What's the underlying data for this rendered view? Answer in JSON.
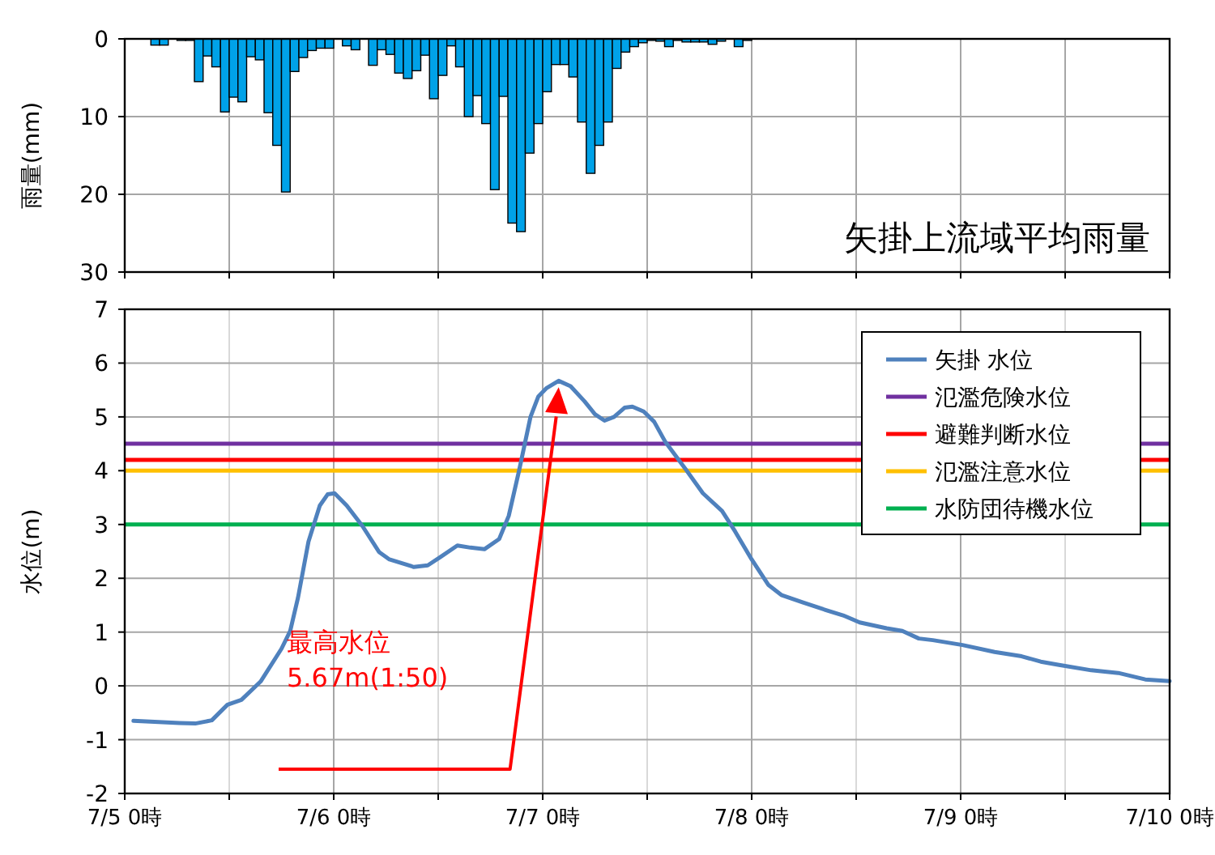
{
  "chart_data": [
    {
      "type": "bar",
      "title": "矢掛上流域平均雨量",
      "ylabel": "雨量(mm)",
      "xlim": [
        "--07-05T00:00",
        "--07-10T00:00"
      ],
      "xticks": [
        {
          "value": "--07-05T00:00",
          "label": null
        },
        {
          "value": "--07-05T12:00",
          "label": null
        },
        {
          "value": "--07-06T00:00",
          "label": null
        },
        {
          "value": "--07-06T12:00",
          "label": null
        },
        {
          "value": "--07-07T00:00",
          "label": null
        },
        {
          "value": "--07-07T12:00",
          "label": null
        },
        {
          "value": "--07-08T00:00",
          "label": null
        },
        {
          "value": "--07-08T12:00",
          "label": null
        },
        {
          "value": "--07-09T00:00",
          "label": null
        },
        {
          "value": "--07-09T12:00",
          "label": null
        },
        {
          "value": "--07-10T00:00",
          "label": null
        }
      ],
      "ylim": [
        30,
        0
      ],
      "yticks": [
        0,
        10,
        20,
        30
      ],
      "grid": true,
      "tick_labels": "y",
      "x": [
        "--07-05T03:30",
        "--07-05T04:30",
        "--07-05T05:30",
        "--07-05T06:30",
        "--07-05T07:30",
        "--07-05T08:30",
        "--07-05T09:30",
        "--07-05T10:30",
        "--07-05T11:30",
        "--07-05T12:30",
        "--07-05T13:30",
        "--07-05T14:30",
        "--07-05T15:30",
        "--07-05T16:30",
        "--07-05T17:30",
        "--07-05T18:30",
        "--07-05T19:30",
        "--07-05T20:30",
        "--07-05T21:30",
        "--07-05T22:30",
        "--07-05T23:30",
        "--07-06T00:30",
        "--07-06T01:30",
        "--07-06T02:30",
        "--07-06T03:30",
        "--07-06T04:30",
        "--07-06T05:30",
        "--07-06T06:30",
        "--07-06T07:30",
        "--07-06T08:30",
        "--07-06T09:30",
        "--07-06T10:30",
        "--07-06T11:30",
        "--07-06T12:30",
        "--07-06T13:30",
        "--07-06T14:30",
        "--07-06T15:30",
        "--07-06T16:30",
        "--07-06T17:30",
        "--07-06T18:30",
        "--07-06T19:30",
        "--07-06T20:30",
        "--07-06T21:30",
        "--07-06T22:30",
        "--07-06T23:30",
        "--07-07T00:30",
        "--07-07T01:30",
        "--07-07T02:30",
        "--07-07T03:30",
        "--07-07T04:30",
        "--07-07T05:30",
        "--07-07T06:30",
        "--07-07T07:30",
        "--07-07T08:30",
        "--07-07T09:30",
        "--07-07T10:30",
        "--07-07T11:30",
        "--07-07T12:30",
        "--07-07T13:30",
        "--07-07T14:30",
        "--07-07T15:30",
        "--07-07T16:30",
        "--07-07T17:30",
        "--07-07T18:30",
        "--07-07T19:30",
        "--07-07T20:30",
        "--07-07T21:30",
        "--07-07T22:30",
        "--07-07T23:30"
      ],
      "series": [
        {
          "color": "#00a2e8",
          "values": [
            0.8,
            0.8,
            0,
            0.2,
            0.2,
            5.5,
            2.2,
            3.6,
            9.4,
            7.5,
            8.1,
            2.3,
            2.7,
            9.5,
            13.7,
            19.7,
            4.2,
            2.4,
            1.5,
            1.2,
            1.2,
            0,
            0.9,
            1.4,
            0,
            3.4,
            1.4,
            2.0,
            4.4,
            5.1,
            4.1,
            2.1,
            7.7,
            4.7,
            0.9,
            3.6,
            10.0,
            7.3,
            10.9,
            19.4,
            7.4,
            23.7,
            24.8,
            14.7,
            10.9,
            6.8,
            3.3,
            3.3,
            4.9,
            10.7,
            17.3,
            13.7,
            10.7,
            3.8,
            1.7,
            1.0,
            0.5,
            0.2,
            0.3,
            1.0,
            0.2,
            0.4,
            0.4,
            0.4,
            0.7,
            0.3,
            0,
            1.0,
            0.2
          ]
        }
      ]
    },
    {
      "type": "line",
      "ylabel": "水位(m)",
      "xlim": [
        "--07-05T00:00",
        "--07-10T00:00"
      ],
      "xticks": [
        {
          "value": "--07-05T00:00",
          "label": "7/5 0時"
        },
        {
          "value": "--07-05T12:00",
          "label": null
        },
        {
          "value": "--07-06T00:00",
          "label": "7/6 0時"
        },
        {
          "value": "--07-06T12:00",
          "label": null
        },
        {
          "value": "--07-07T00:00",
          "label": "7/7 0時"
        },
        {
          "value": "--07-07T12:00",
          "label": null
        },
        {
          "value": "--07-08T00:00",
          "label": "7/8 0時"
        },
        {
          "value": "--07-08T12:00",
          "label": null
        },
        {
          "value": "--07-09T00:00",
          "label": "7/9 0時"
        },
        {
          "value": "--07-09T12:00",
          "label": null
        },
        {
          "value": "--07-10T00:00",
          "label": "7/10 0時"
        }
      ],
      "ylim": [
        -2,
        7
      ],
      "yticks": [
        -2,
        -1,
        0,
        1,
        2,
        3,
        4,
        5,
        6,
        7
      ],
      "grid": true,
      "legend": "top right",
      "series": [
        {
          "name": "矢掛 水位",
          "color": "#4f81bd",
          "x": [
            "--07-05T01:00",
            "--07-05T06:18",
            "--07-05T08:06",
            "--07-05T10:00",
            "--07-05T11:48",
            "--07-05T13:24",
            "--07-05T15:36",
            "--07-05T18:00",
            "--07-05T19:00",
            "--07-05T19:54",
            "--07-05T21:06",
            "--07-05T22:24",
            "--07-05T23:18",
            "--07-06T00:06",
            "--07-06T01:30",
            "--07-06T03:18",
            "--07-06T05:12",
            "--07-06T06:24",
            "--07-06T09:12",
            "--07-06T10:48",
            "--07-06T12:18",
            "--07-06T14:12",
            "--07-06T15:42",
            "--07-06T17:18",
            "--07-06T19:00",
            "--07-06T20:06",
            "--07-06T21:18",
            "--07-06T22:36",
            "--07-06T23:30",
            "--07-07T00:24",
            "--07-07T01:50",
            "--07-07T03:12",
            "--07-07T04:48",
            "--07-07T06:00",
            "--07-07T07:06",
            "--07-07T08:12",
            "--07-07T09:24",
            "--07-07T10:18",
            "--07-07T11:36",
            "--07-07T12:48",
            "--07-07T14:06",
            "--07-07T16:30",
            "--07-07T18:24",
            "--07-07T20:36",
            "--07-07T22:06",
            "--07-08T00:00",
            "--07-08T01:54",
            "--07-08T03:24",
            "--07-08T05:54",
            "--07-08T08:42",
            "--07-08T10:30",
            "--07-08T12:24",
            "--07-08T15:30",
            "--07-08T17:18",
            "--07-08T19:12",
            "--07-08T20:48",
            "--07-09T00:12",
            "--07-09T03:54",
            "--07-09T07:00",
            "--07-09T09:12",
            "--07-09T11:18",
            "--07-09T15:00",
            "--07-09T18:06",
            "--07-09T21:12",
            "--07-10T00:00"
          ],
          "values": [
            -0.65,
            -0.69,
            -0.7,
            -0.64,
            -0.35,
            -0.26,
            0.08,
            0.69,
            1.02,
            1.64,
            2.68,
            3.35,
            3.56,
            3.58,
            3.35,
            2.97,
            2.49,
            2.35,
            2.21,
            2.24,
            2.4,
            2.61,
            2.57,
            2.54,
            2.73,
            3.16,
            4.01,
            5.0,
            5.38,
            5.53,
            5.67,
            5.57,
            5.29,
            5.05,
            4.93,
            5.0,
            5.17,
            5.19,
            5.1,
            4.91,
            4.53,
            4.01,
            3.58,
            3.25,
            2.87,
            2.35,
            1.88,
            1.69,
            1.55,
            1.4,
            1.31,
            1.18,
            1.07,
            1.02,
            0.88,
            0.85,
            0.76,
            0.63,
            0.55,
            0.45,
            0.39,
            0.29,
            0.24,
            0.12,
            0.09
          ]
        }
      ],
      "ref_lines": [
        {
          "axis": "y",
          "value": 4.5,
          "label": "氾濫危険水位",
          "color": "#7030a0"
        },
        {
          "axis": "y",
          "value": 4.2,
          "label": "避難判断水位",
          "color": "#ff0000"
        },
        {
          "axis": "y",
          "value": 4.0,
          "label": "氾濫注意水位",
          "color": "#ffc000"
        },
        {
          "axis": "y",
          "value": 3.0,
          "label": "水防団待機水位",
          "color": "#00b050"
        }
      ],
      "annotations": [
        "最高水位\n5.67m(1:50)"
      ]
    }
  ]
}
